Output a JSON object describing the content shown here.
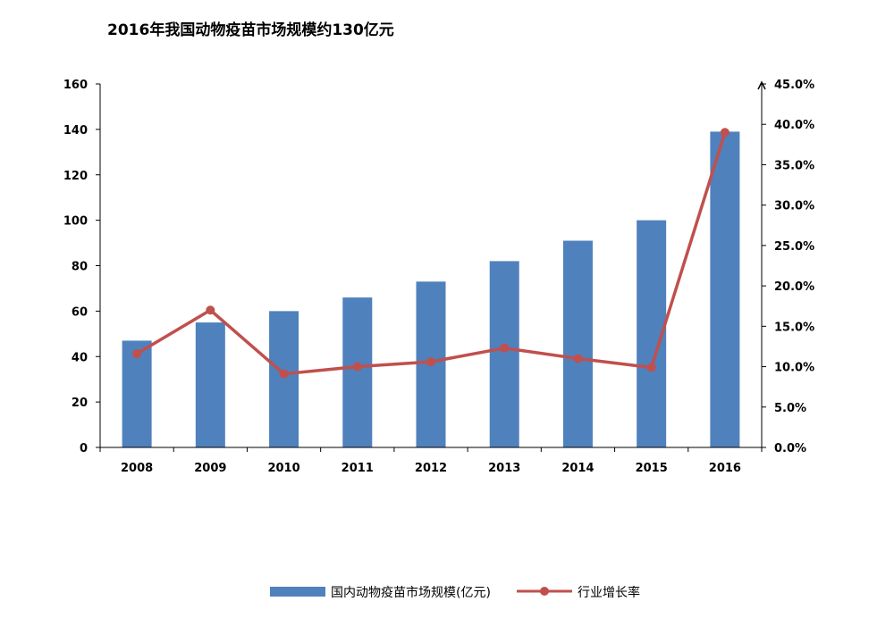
{
  "chart_data": {
    "type": "bar",
    "title": "2016年我国动物疫苗市场规模约130亿元",
    "categories": [
      "2008",
      "2009",
      "2010",
      "2011",
      "2012",
      "2013",
      "2014",
      "2015",
      "2016"
    ],
    "series": [
      {
        "name": "国内动物疫苗市场规模(亿元)",
        "type": "bar",
        "axis": "left",
        "color": "#4F81BD",
        "values": [
          47,
          55,
          60,
          66,
          73,
          82,
          91,
          100,
          139
        ]
      },
      {
        "name": "行业增长率",
        "type": "line",
        "axis": "right",
        "color": "#C0504D",
        "values": [
          11.6,
          17.0,
          9.1,
          10.0,
          10.6,
          12.3,
          11.0,
          9.9,
          39.0
        ]
      }
    ],
    "y_left": {
      "min": 0,
      "max": 160,
      "step": 20,
      "tick_labels": [
        "0",
        "20",
        "40",
        "60",
        "80",
        "100",
        "120",
        "140",
        "160"
      ]
    },
    "y_right": {
      "min": 0,
      "max": 45,
      "step": 5,
      "tick_labels": [
        "0.0%",
        "5.0%",
        "10.0%",
        "15.0%",
        "20.0%",
        "25.0%",
        "30.0%",
        "35.0%",
        "40.0%",
        "45.0%"
      ]
    },
    "grid": false,
    "legend_position": "bottom"
  }
}
